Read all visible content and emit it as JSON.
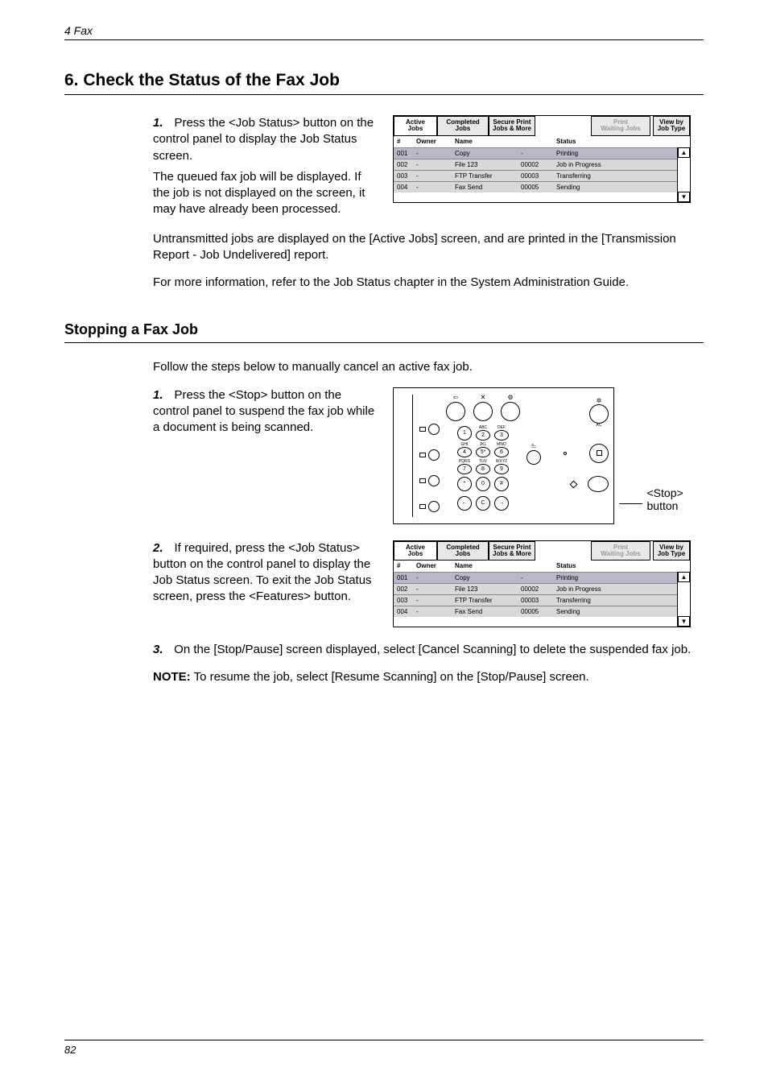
{
  "header": {
    "chapter": "4 Fax"
  },
  "section6": {
    "title": "6. Check the Status of the Fax Job",
    "step1_num": "1.",
    "step1_text": "Press the <Job Status> button on the control panel to display the Job Status screen.",
    "para1": "The queued fax job will be displayed. If the job is not displayed on the screen, it may have already been processed.",
    "para2": "Untransmitted jobs are displayed on the [Active Jobs] screen, and are printed in the [Transmission Report - Job Undelivered] report.",
    "para3": "For more information, refer to the Job Status chapter in the System Administration Guide."
  },
  "stop_section": {
    "title": "Stopping a Fax Job",
    "intro": "Follow the steps below to manually cancel an active fax job.",
    "step1_num": "1.",
    "step1_text": "Press the <Stop> button on the control panel to suspend the fax job while a document is being scanned.",
    "step2_num": "2.",
    "step2_text": "If required, press the <Job Status> button on the control panel to display the Job Status screen. To exit the Job Status screen, press the <Features> button.",
    "step3_num": "3.",
    "step3_text": "On the [Stop/Pause] screen displayed, select [Cancel Scanning] to delete the suspended fax job.",
    "note_label": "NOTE:",
    "note_text": " To resume the job, select [Resume Scanning] on the [Stop/Pause] screen.",
    "annot": "<Stop> button"
  },
  "jobstatus": {
    "tabs": {
      "active": "Active Jobs",
      "completed": "Completed Jobs",
      "secure": "Secure Print\nJobs & More",
      "waiting": "Print\nWaiting Jobs",
      "viewby": "View by\nJob Type"
    },
    "headers": {
      "num": "#",
      "owner": "Owner",
      "name": "Name",
      "status": "Status"
    },
    "rows": [
      {
        "num": "001",
        "owner": "-",
        "name": "Copy",
        "id": "-",
        "status": "Printing",
        "sel": true
      },
      {
        "num": "002",
        "owner": "-",
        "name": "File 123",
        "id": "00002",
        "status": "Job in Progress",
        "sel": false
      },
      {
        "num": "003",
        "owner": "-",
        "name": "FTP Transfer",
        "id": "00003",
        "status": "Transferring",
        "sel": false
      },
      {
        "num": "004",
        "owner": "-",
        "name": "Fax Send",
        "id": "00005",
        "status": "Sending",
        "sel": false
      }
    ]
  },
  "keypad": {
    "keys": [
      "1",
      "2",
      "3",
      "4",
      "5*",
      "6",
      "7",
      "8",
      "9",
      "*",
      "0",
      "#"
    ],
    "row_labels": [
      [
        "",
        "ABC",
        "DEF"
      ],
      [
        "GHI",
        "JKL",
        "MNO"
      ],
      [
        "PQRS",
        "TUV",
        "WXYZ"
      ],
      [
        "",
        "",
        ""
      ]
    ],
    "bottom_keys": [
      "←",
      "C",
      "→"
    ]
  },
  "colors": {
    "tab_bg": "#e8e8e8",
    "row_bg": "#d8d8d8",
    "row_sel_bg": "#b8b8c8",
    "waiting_tab_text": "#9a9a9a"
  },
  "footer": {
    "page": "82"
  }
}
